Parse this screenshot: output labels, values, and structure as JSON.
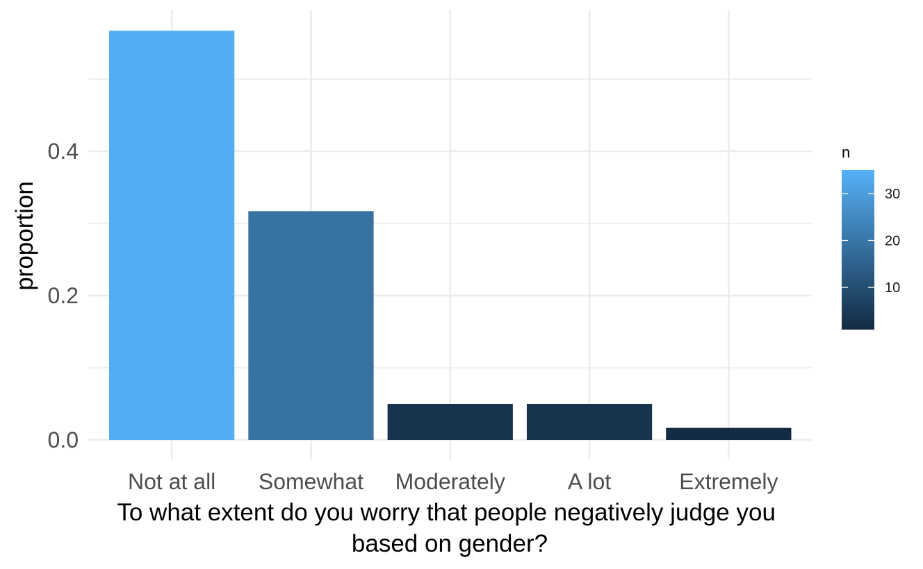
{
  "chart_data": {
    "type": "bar",
    "categories": [
      "Not at all",
      "Somewhat",
      "Moderately",
      "A lot",
      "Extremely"
    ],
    "values": [
      0.567,
      0.317,
      0.05,
      0.05,
      0.0167
    ],
    "counts": [
      34,
      19,
      3,
      3,
      1
    ],
    "ylabel": "proportion",
    "xlabel_lines": [
      "To what extent do you worry that people negatively judge you",
      "based on gender?"
    ],
    "ylim": [
      0,
      0.6
    ],
    "y_ticks": [
      0.0,
      0.2,
      0.4
    ],
    "y_tick_labels": [
      "0.0",
      "0.2",
      "0.4"
    ],
    "grid": true,
    "legend": {
      "title": "n",
      "placement": "right",
      "range": [
        1,
        35
      ],
      "ticks": [
        10,
        20,
        30
      ],
      "tick_labels": [
        "10",
        "20",
        "30"
      ],
      "color_low": "#132B43",
      "color_high": "#56B1F7"
    }
  }
}
